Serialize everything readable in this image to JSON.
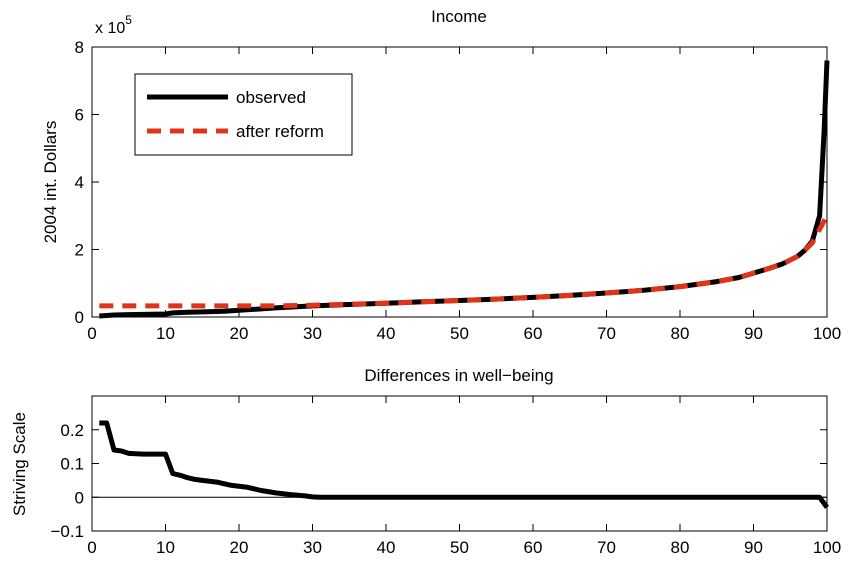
{
  "chart_data": [
    {
      "type": "line",
      "title": "Income",
      "ylabel": "2004 int. Dollars",
      "xlabel": "",
      "y_multiplier_label": "x 10",
      "y_multiplier_exponent": "5",
      "xlim": [
        0,
        100
      ],
      "ylim": [
        0,
        8
      ],
      "x_ticks": [
        0,
        10,
        20,
        30,
        40,
        50,
        60,
        70,
        80,
        90,
        100
      ],
      "y_ticks": [
        0,
        2,
        4,
        6,
        8
      ],
      "x_tick_labels": [
        "0",
        "10",
        "20",
        "30",
        "40",
        "50",
        "60",
        "70",
        "80",
        "90",
        "100"
      ],
      "y_tick_labels": [
        "0",
        "2",
        "4",
        "6",
        "8"
      ],
      "grid": false,
      "legend_position": "top-left",
      "series": [
        {
          "name": "observed",
          "color": "#000000",
          "style": "solid",
          "points": [
            [
              1,
              0.03
            ],
            [
              3,
              0.06
            ],
            [
              5,
              0.07
            ],
            [
              8,
              0.08
            ],
            [
              10,
              0.09
            ],
            [
              11,
              0.12
            ],
            [
              13,
              0.14
            ],
            [
              15,
              0.15
            ],
            [
              18,
              0.17
            ],
            [
              20,
              0.2
            ],
            [
              25,
              0.27
            ],
            [
              30,
              0.33
            ],
            [
              35,
              0.37
            ],
            [
              40,
              0.41
            ],
            [
              45,
              0.45
            ],
            [
              50,
              0.49
            ],
            [
              55,
              0.53
            ],
            [
              60,
              0.58
            ],
            [
              65,
              0.64
            ],
            [
              70,
              0.71
            ],
            [
              75,
              0.79
            ],
            [
              80,
              0.9
            ],
            [
              85,
              1.05
            ],
            [
              88,
              1.17
            ],
            [
              90,
              1.3
            ],
            [
              92,
              1.43
            ],
            [
              94,
              1.58
            ],
            [
              96,
              1.8
            ],
            [
              97,
              1.98
            ],
            [
              98,
              2.25
            ],
            [
              99,
              3.0
            ],
            [
              99.6,
              5.5
            ],
            [
              100,
              7.6
            ]
          ]
        },
        {
          "name": "after reform",
          "color": "#e0341a",
          "style": "dashed",
          "points": [
            [
              1,
              0.33
            ],
            [
              5,
              0.33
            ],
            [
              10,
              0.33
            ],
            [
              15,
              0.33
            ],
            [
              20,
              0.33
            ],
            [
              25,
              0.33
            ],
            [
              30,
              0.35
            ],
            [
              35,
              0.38
            ],
            [
              40,
              0.41
            ],
            [
              45,
              0.45
            ],
            [
              50,
              0.49
            ],
            [
              55,
              0.53
            ],
            [
              60,
              0.58
            ],
            [
              65,
              0.64
            ],
            [
              70,
              0.71
            ],
            [
              75,
              0.79
            ],
            [
              80,
              0.9
            ],
            [
              85,
              1.05
            ],
            [
              88,
              1.17
            ],
            [
              90,
              1.3
            ],
            [
              92,
              1.43
            ],
            [
              94,
              1.58
            ],
            [
              96,
              1.8
            ],
            [
              97,
              1.98
            ],
            [
              98,
              2.2
            ],
            [
              99,
              2.6
            ],
            [
              100,
              3.0
            ]
          ]
        }
      ]
    },
    {
      "type": "line",
      "title": "Differences in well−being",
      "ylabel": "Striving Scale",
      "xlabel": "",
      "xlim": [
        0,
        100
      ],
      "ylim": [
        -0.1,
        0.3
      ],
      "x_ticks": [
        0,
        10,
        20,
        30,
        40,
        50,
        60,
        70,
        80,
        90,
        100
      ],
      "y_ticks": [
        -0.1,
        0,
        0.1,
        0.2
      ],
      "x_tick_labels": [
        "0",
        "10",
        "20",
        "30",
        "40",
        "50",
        "60",
        "70",
        "80",
        "90",
        "100"
      ],
      "y_tick_labels": [
        "−0.1",
        "0",
        "0.1",
        "0.2"
      ],
      "grid": false,
      "zero_line": true,
      "series": [
        {
          "color": "#000000",
          "style": "solid",
          "points": [
            [
              1,
              0.22
            ],
            [
              2,
              0.22
            ],
            [
              3,
              0.14
            ],
            [
              4,
              0.137
            ],
            [
              5,
              0.13
            ],
            [
              7,
              0.128
            ],
            [
              9,
              0.128
            ],
            [
              10,
              0.128
            ],
            [
              11,
              0.07
            ],
            [
              12,
              0.065
            ],
            [
              13,
              0.058
            ],
            [
              14,
              0.053
            ],
            [
              15,
              0.05
            ],
            [
              17,
              0.045
            ],
            [
              18,
              0.04
            ],
            [
              19,
              0.035
            ],
            [
              21,
              0.03
            ],
            [
              23,
              0.02
            ],
            [
              25,
              0.013
            ],
            [
              27,
              0.008
            ],
            [
              29,
              0.004
            ],
            [
              30,
              0.001
            ],
            [
              31,
              0
            ],
            [
              40,
              0
            ],
            [
              50,
              0
            ],
            [
              60,
              0
            ],
            [
              70,
              0
            ],
            [
              80,
              0
            ],
            [
              90,
              0
            ],
            [
              99,
              0
            ],
            [
              100,
              -0.03
            ]
          ]
        }
      ]
    }
  ]
}
